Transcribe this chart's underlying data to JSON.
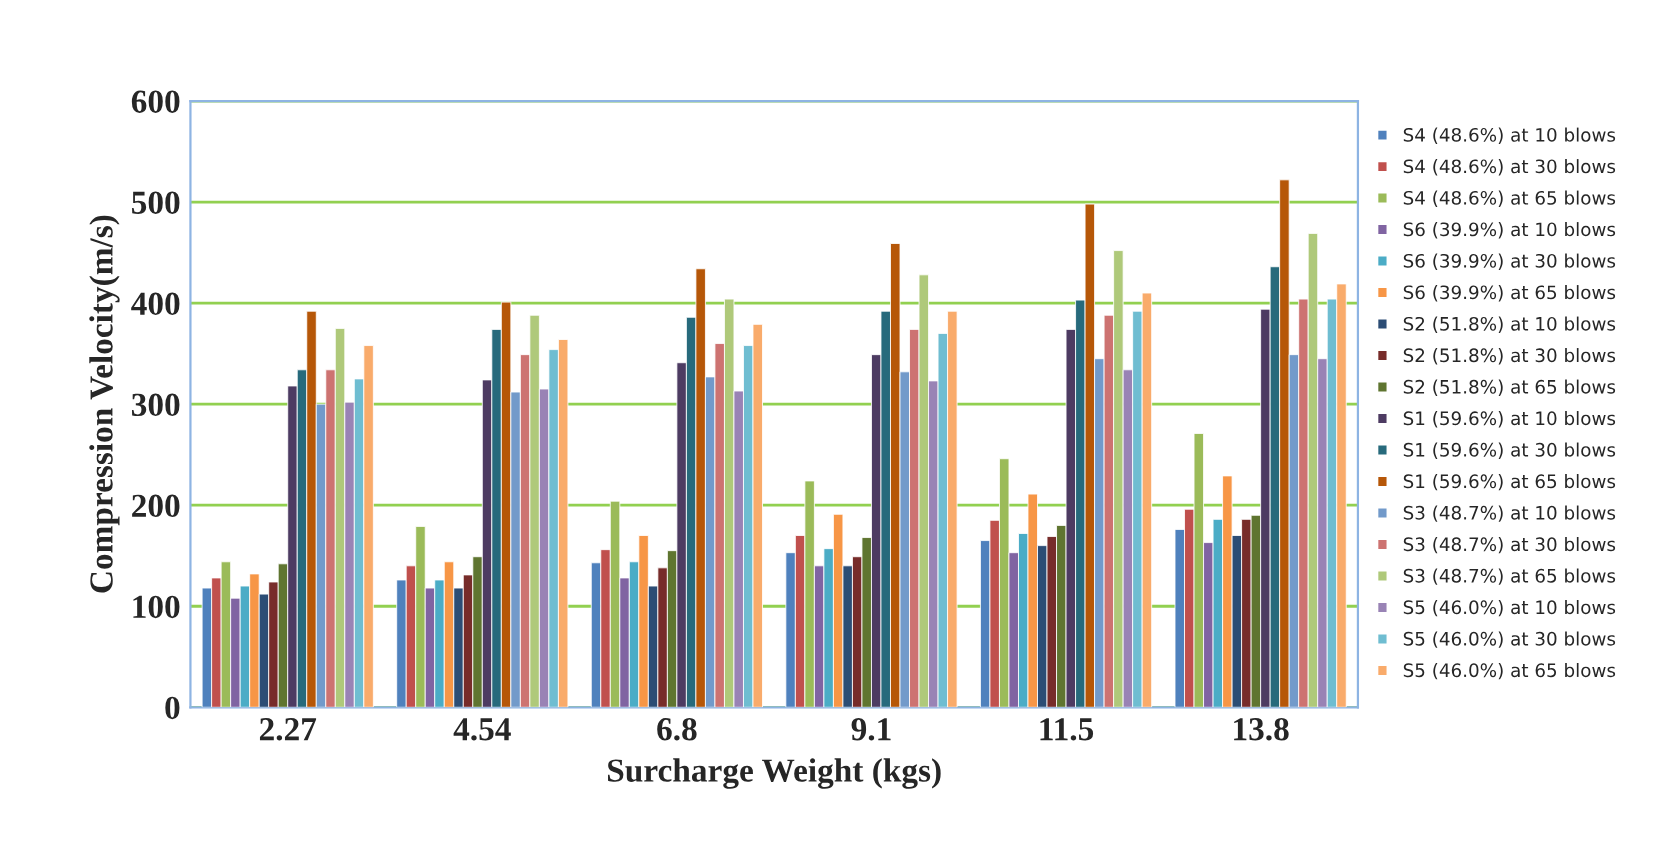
{
  "chart_data": {
    "type": "bar",
    "xlabel": "Surcharge Weight (kgs)",
    "ylabel": "Compression Velocity(m/s)",
    "categories": [
      "2.27",
      "4.54",
      "6.8",
      "9.1",
      "11.5",
      "13.8"
    ],
    "ylim": [
      0,
      600
    ],
    "yticks": [
      0,
      100,
      200,
      300,
      400,
      500,
      600
    ],
    "grid": "y",
    "legend": "right",
    "series": [
      {
        "name": "S4 (48.6%) at 10 blows",
        "color": "#4f81bd",
        "values": [
          118,
          126,
          143,
          153,
          165,
          176
        ]
      },
      {
        "name": "S4 (48.6%) at 30 blows",
        "color": "#c0504d",
        "values": [
          128,
          140,
          156,
          170,
          185,
          196
        ]
      },
      {
        "name": "S4 (48.6%) at 65 blows",
        "color": "#9bbb59",
        "values": [
          144,
          179,
          204,
          224,
          246,
          271
        ]
      },
      {
        "name": "S6 (39.9%) at 10 blows",
        "color": "#8064a2",
        "values": [
          108,
          118,
          128,
          140,
          153,
          163
        ]
      },
      {
        "name": "S6 (39.9%) at 30 blows",
        "color": "#4bacc6",
        "values": [
          120,
          126,
          144,
          157,
          172,
          186
        ]
      },
      {
        "name": "S6 (39.9%) at 65 blows",
        "color": "#f79646",
        "values": [
          132,
          144,
          170,
          191,
          211,
          229
        ]
      },
      {
        "name": "S2 (51.8%) at 10 blows",
        "color": "#2c4d75",
        "values": [
          112,
          118,
          120,
          140,
          160,
          170
        ]
      },
      {
        "name": "S2 (51.8%) at 30 blows",
        "color": "#772c2a",
        "values": [
          124,
          131,
          138,
          149,
          169,
          186
        ]
      },
      {
        "name": "S2 (51.8%) at 65 blows",
        "color": "#5f7530",
        "values": [
          142,
          149,
          155,
          168,
          180,
          190
        ]
      },
      {
        "name": "S1 (59.6%) at 10 blows",
        "color": "#4d3b62",
        "values": [
          318,
          324,
          341,
          349,
          374,
          394
        ]
      },
      {
        "name": "S1 (59.6%) at 30 blows",
        "color": "#276a7c",
        "values": [
          334,
          374,
          386,
          392,
          403,
          436
        ]
      },
      {
        "name": "S1 (59.6%) at 65 blows",
        "color": "#b65708",
        "values": [
          392,
          401,
          434,
          459,
          498,
          522
        ]
      },
      {
        "name": "S3 (48.7%) at 10 blows",
        "color": "#729aca",
        "values": [
          300,
          312,
          327,
          332,
          345,
          349
        ]
      },
      {
        "name": "S3 (48.7%) at 30 blows",
        "color": "#cd7371",
        "values": [
          334,
          349,
          360,
          374,
          388,
          404
        ]
      },
      {
        "name": "S3 (48.7%) at 65 blows",
        "color": "#afc97a",
        "values": [
          375,
          388,
          404,
          428,
          452,
          469
        ]
      },
      {
        "name": "S5 (46.0%) at 10 blows",
        "color": "#9983b5",
        "values": [
          302,
          315,
          313,
          323,
          334,
          345
        ]
      },
      {
        "name": "S5 (46.0%) at 30 blows",
        "color": "#6fbdd1",
        "values": [
          325,
          354,
          358,
          370,
          392,
          404
        ]
      },
      {
        "name": "S5 (46.0%) at 65 blows",
        "color": "#f9ab6b",
        "values": [
          358,
          364,
          379,
          392,
          410,
          419
        ]
      }
    ]
  }
}
